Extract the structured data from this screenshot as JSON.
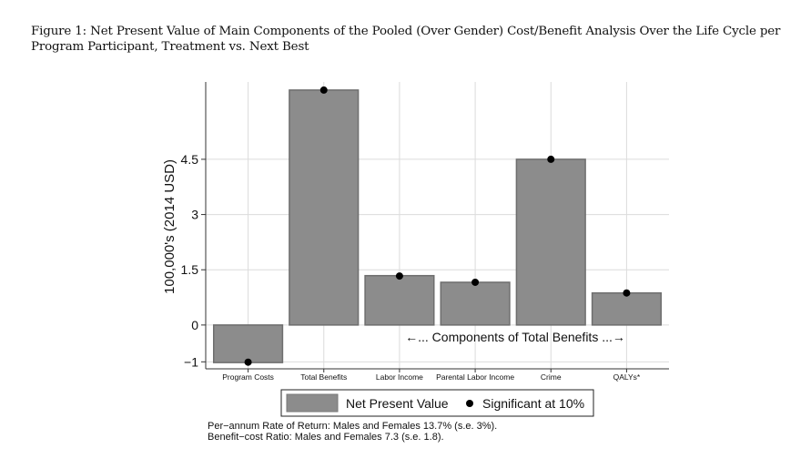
{
  "figure_caption": "Figure 1: Net Present Value of Main Components of the Pooled (Over Gender) Cost/Benefit Analysis Over the Life Cycle per Program Participant, Treatment vs. Next Best",
  "chart_data": {
    "type": "bar",
    "title": "",
    "xlabel": "",
    "ylabel": "100,000's (2014 USD)",
    "ylim": [
      -1.19,
      6.6
    ],
    "yticks": [
      -1,
      0,
      1.5,
      3,
      4.5
    ],
    "ytick_labels": [
      "−1",
      "0",
      "1.5",
      "3",
      "4.5"
    ],
    "grid": true,
    "categories": [
      "Program Costs",
      "Total Benefits",
      "Labor Income",
      "Parental Labor Income",
      "Crime",
      "QALYs*"
    ],
    "series": [
      {
        "name": "Net Present Value",
        "type": "bar",
        "values": [
          -1.02,
          6.38,
          1.34,
          1.16,
          4.5,
          0.87
        ],
        "color": "#8c8c8c"
      },
      {
        "name": "Significant at 10%",
        "type": "scatter",
        "values": [
          -1.01,
          6.38,
          1.33,
          1.16,
          4.5,
          0.87
        ],
        "color": "#000000"
      }
    ],
    "annotation": "←... Components of Total Benefits ...→",
    "legend_position": "bottom"
  },
  "notes": [
    "Per−annum Rate of Return: Males and Females 13.7% (s.e. 3%).",
    "Benefit−cost Ratio: Males and Females 7.3 (s.e. 1.8)."
  ]
}
